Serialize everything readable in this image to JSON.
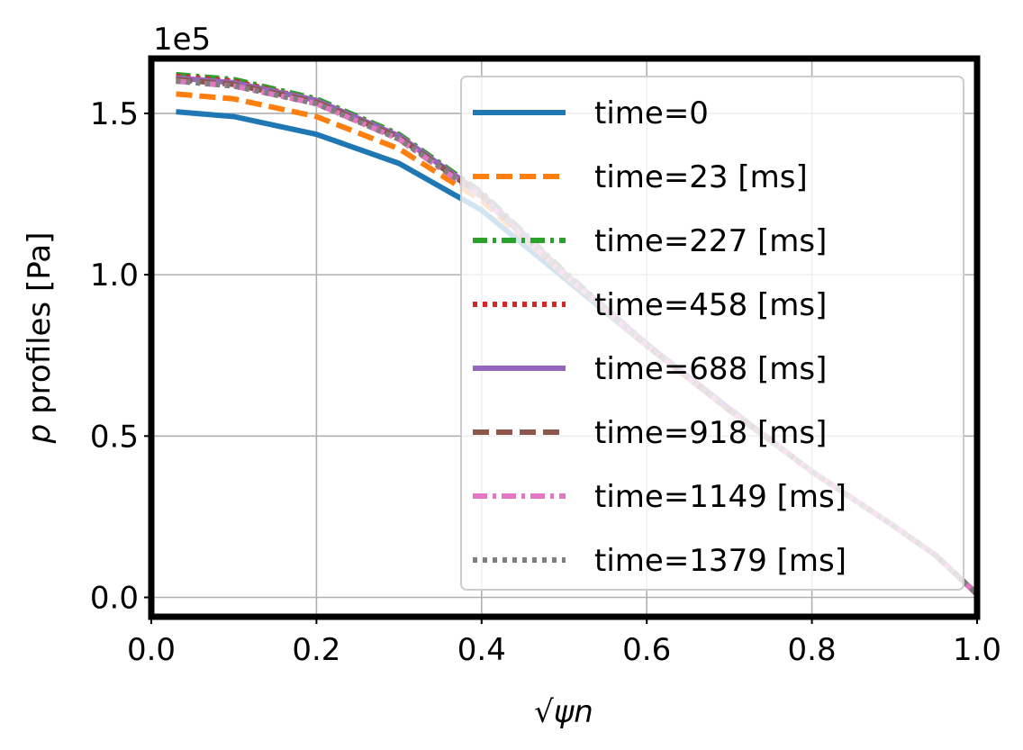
{
  "chart_data": {
    "type": "line",
    "title": "",
    "xlabel": "√ψn",
    "ylabel_italic": "p",
    "ylabel_rest": " profiles [Pa]",
    "y_offset_text": "1e5",
    "xlim": [
      0.0,
      1.0
    ],
    "ylim": [
      -0.06,
      1.67
    ],
    "y_scale_factor": 100000,
    "grid": true,
    "legend_position": "upper-right",
    "x_ticks": [
      0.0,
      0.2,
      0.4,
      0.6,
      0.8,
      1.0
    ],
    "x_tick_labels": [
      "0.0",
      "0.2",
      "0.4",
      "0.6",
      "0.8",
      "1.0"
    ],
    "y_ticks": [
      0.0,
      0.5,
      1.0,
      1.5
    ],
    "y_tick_labels": [
      "0.0",
      "0.5",
      "1.0",
      "1.5"
    ],
    "x": [
      0.03,
      0.1,
      0.2,
      0.3,
      0.4,
      0.5,
      0.6,
      0.7,
      0.8,
      0.9,
      0.95,
      1.0
    ],
    "series": [
      {
        "name": "time=0",
        "color": "#1f77b4",
        "dash": "solid",
        "values": [
          1.505,
          1.49,
          1.435,
          1.345,
          1.2,
          0.99,
          0.78,
          0.58,
          0.39,
          0.22,
          0.13,
          0.01
        ]
      },
      {
        "name": "time=23 [ms]",
        "color": "#ff7f0e",
        "dash": "dashed",
        "values": [
          1.56,
          1.545,
          1.49,
          1.39,
          1.23,
          1.0,
          0.78,
          0.58,
          0.39,
          0.22,
          0.13,
          0.01
        ]
      },
      {
        "name": "time=227 [ms]",
        "color": "#2ca02c",
        "dash": "dashdot",
        "values": [
          1.62,
          1.605,
          1.545,
          1.435,
          1.255,
          1.01,
          0.785,
          0.585,
          0.39,
          0.22,
          0.13,
          0.01
        ]
      },
      {
        "name": "time=458 [ms]",
        "color": "#d62728",
        "dash": "dotted",
        "values": [
          1.615,
          1.6,
          1.54,
          1.43,
          1.25,
          1.005,
          0.785,
          0.585,
          0.39,
          0.22,
          0.13,
          0.01
        ]
      },
      {
        "name": "time=688 [ms]",
        "color": "#9467bd",
        "dash": "solid",
        "values": [
          1.61,
          1.595,
          1.54,
          1.43,
          1.25,
          1.005,
          0.785,
          0.585,
          0.39,
          0.22,
          0.13,
          0.01
        ]
      },
      {
        "name": "time=918 [ms]",
        "color": "#8c564b",
        "dash": "dashed",
        "values": [
          1.605,
          1.59,
          1.535,
          1.425,
          1.245,
          1.0,
          0.78,
          0.58,
          0.39,
          0.22,
          0.13,
          0.01
        ]
      },
      {
        "name": "time=1149 [ms]",
        "color": "#e377c2",
        "dash": "dashdot",
        "values": [
          1.6,
          1.585,
          1.53,
          1.42,
          1.24,
          1.0,
          0.78,
          0.58,
          0.39,
          0.22,
          0.13,
          0.01
        ]
      },
      {
        "name": "time=1379 [ms]",
        "color": "#7f7f7f",
        "dash": "dotted",
        "values": [
          1.6,
          1.585,
          1.53,
          1.42,
          1.245,
          1.0,
          0.78,
          0.58,
          0.39,
          0.22,
          0.13,
          0.01
        ]
      }
    ]
  }
}
